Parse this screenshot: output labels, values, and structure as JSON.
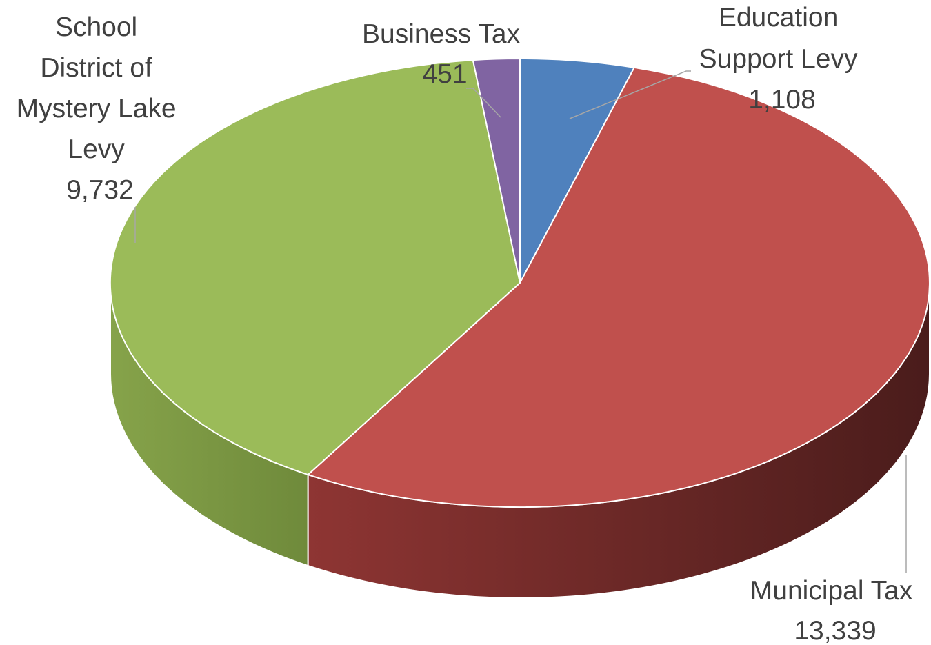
{
  "chart_data": {
    "type": "pie",
    "title": "",
    "slices": [
      {
        "label_lines": [
          "Education",
          "Support Levy"
        ],
        "value": 1108,
        "value_label": "1,108",
        "color": "#4F81BD"
      },
      {
        "label_lines": [
          "Municipal Tax"
        ],
        "value": 13339,
        "value_label": "13,339",
        "color": "#C0504D"
      },
      {
        "label_lines": [
          "School",
          "District of",
          "Mystery Lake",
          "Levy"
        ],
        "value": 9732,
        "value_label": "9,732",
        "color": "#9BBB59"
      },
      {
        "label_lines": [
          "Business Tax"
        ],
        "value": 451,
        "value_label": "451",
        "color": "#8064A2"
      }
    ]
  }
}
